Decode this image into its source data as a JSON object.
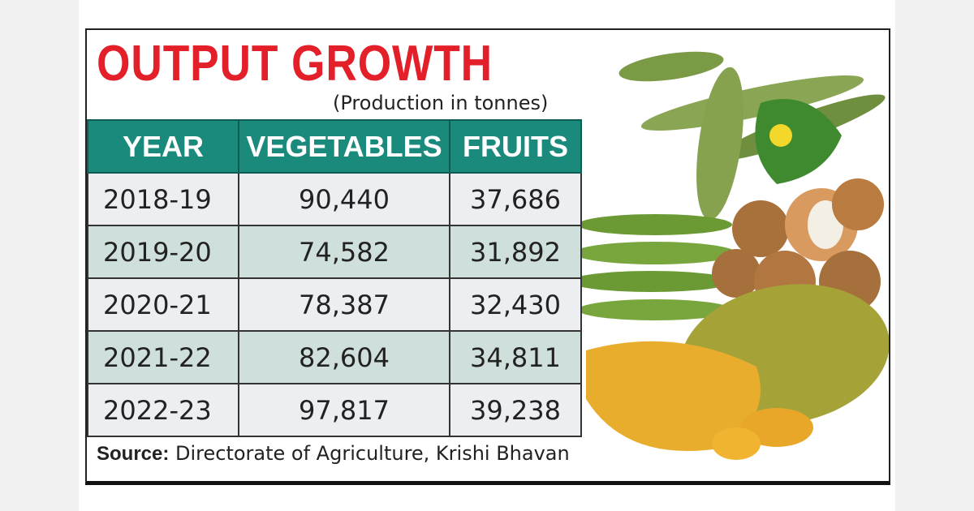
{
  "title": "OUTPUT GROWTH",
  "subtitle": "(Production in tonnes)",
  "table": {
    "header": [
      "YEAR",
      "VEGETABLES",
      "FRUITS"
    ],
    "rows": [
      [
        "2018-19",
        "90,440",
        "37,686"
      ],
      [
        "2019-20",
        "74,582",
        "31,892"
      ],
      [
        "2020-21",
        "78,387",
        "32,430"
      ],
      [
        "2021-22",
        "82,604",
        "34,811"
      ],
      [
        "2022-23",
        "97,817",
        "39,238"
      ]
    ]
  },
  "source": {
    "label": "Source:",
    "text": "Directorate of Agriculture, Krishi Bhavan"
  }
}
